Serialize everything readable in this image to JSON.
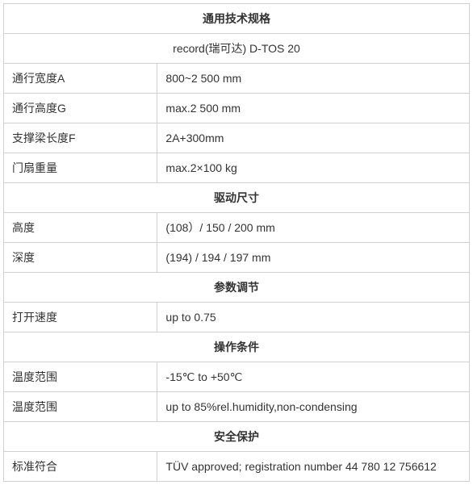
{
  "sections": [
    {
      "title": "通用技术规格",
      "subtitle": "record(瑞可达)  D-TOS 20",
      "rows": [
        {
          "label": "通行宽度A",
          "value": "800~2 500 mm"
        },
        {
          "label": "通行高度G",
          "value": "max.2 500 mm"
        },
        {
          "label": "支撑梁长度F",
          "value": "2A+300mm"
        },
        {
          "label": "门扇重量",
          "value": "max.2×100 kg"
        }
      ]
    },
    {
      "title": "驱动尺寸",
      "rows": [
        {
          "label": "高度",
          "value": "  (108）/ 150 / 200 mm"
        },
        {
          "label": "深度",
          "value": "(194) / 194 / 197 mm"
        }
      ]
    },
    {
      "title": "参数调节",
      "rows": [
        {
          "label": "打开速度",
          "value": "up to 0.75"
        }
      ]
    },
    {
      "title": "操作条件",
      "rows": [
        {
          "label": "温度范围",
          "value": "-15℃ to +50℃"
        },
        {
          "label": "温度范围",
          "value": "up to 85%rel.humidity,non-condensing"
        }
      ]
    },
    {
      "title": "安全保护",
      "rows": [
        {
          "label": "标准符合",
          "value": "TÜV  approved; registration number 44 780 12 756612"
        }
      ]
    }
  ],
  "style": {
    "border_color": "#d0d0d0",
    "text_color": "#333333",
    "background_color": "#ffffff",
    "header_fontsize": 15,
    "body_fontsize": 14,
    "font_family": "Microsoft YaHei, Arial, sans-serif"
  }
}
